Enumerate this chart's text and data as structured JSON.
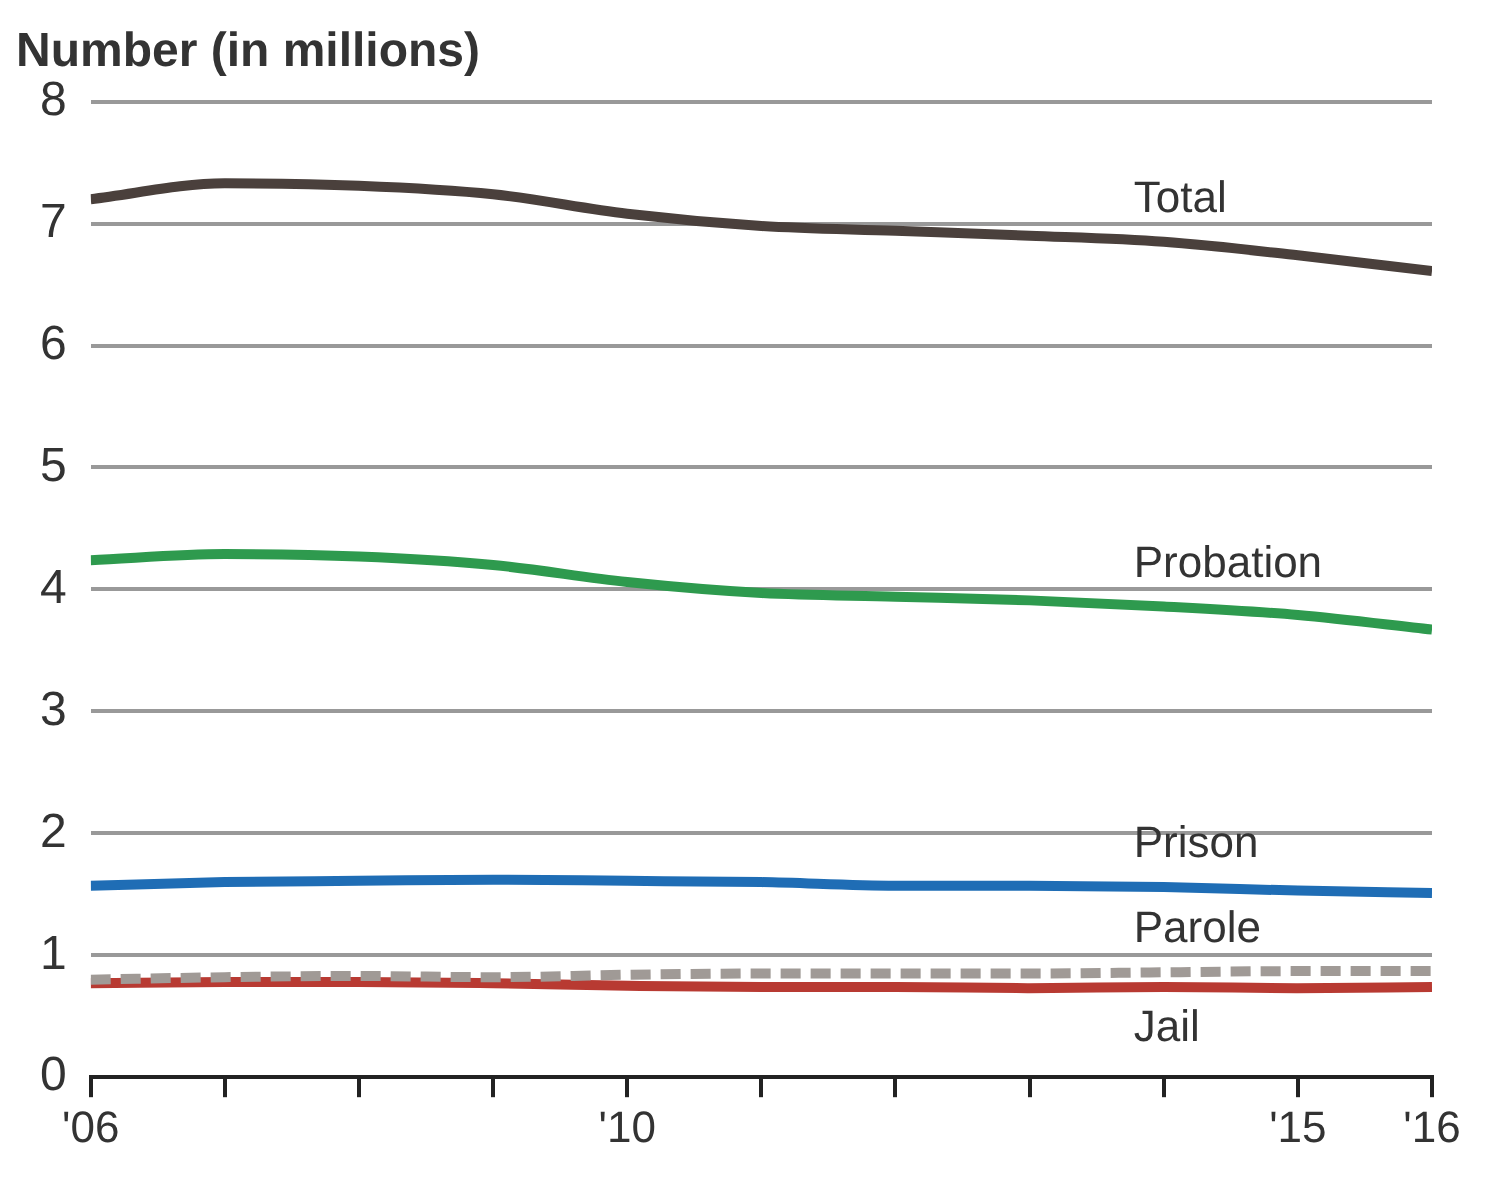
{
  "chart_data": {
    "type": "line",
    "ylabel": "Number (in millions)",
    "x": [
      2006,
      2007,
      2008,
      2009,
      2010,
      2011,
      2012,
      2013,
      2014,
      2015,
      2016
    ],
    "xlim": [
      2006,
      2016
    ],
    "xticks": [
      {
        "value": 2006,
        "label": "'06"
      },
      {
        "value": 2007,
        "label": null
      },
      {
        "value": 2008,
        "label": null
      },
      {
        "value": 2009,
        "label": null
      },
      {
        "value": 2010,
        "label": "'10"
      },
      {
        "value": 2011,
        "label": null
      },
      {
        "value": 2012,
        "label": null
      },
      {
        "value": 2013,
        "label": null
      },
      {
        "value": 2014,
        "label": null
      },
      {
        "value": 2015,
        "label": "'15"
      },
      {
        "value": 2016,
        "label": "'16"
      }
    ],
    "ylim": [
      0,
      8
    ],
    "yticks": [
      0,
      1,
      2,
      3,
      4,
      5,
      6,
      7,
      8
    ],
    "grid": "y",
    "legend": false,
    "marker": "none",
    "series": [
      {
        "name": "Total",
        "color": "#4a403c",
        "line_style": "solid",
        "values": [
          7.2,
          7.33,
          7.31,
          7.24,
          7.08,
          6.98,
          6.94,
          6.9,
          6.85,
          6.74,
          6.61
        ]
      },
      {
        "name": "Probation",
        "color": "#2e9a4e",
        "line_style": "solid",
        "values": [
          4.24,
          4.29,
          4.27,
          4.2,
          4.06,
          3.97,
          3.94,
          3.91,
          3.86,
          3.79,
          3.67
        ]
      },
      {
        "name": "Prison",
        "color": "#1f6db5",
        "line_style": "solid",
        "values": [
          1.57,
          1.6,
          1.61,
          1.62,
          1.61,
          1.6,
          1.57,
          1.57,
          1.56,
          1.53,
          1.51
        ]
      },
      {
        "name": "Parole",
        "color": "#a09a96",
        "line_style": "dashed",
        "values": [
          0.8,
          0.82,
          0.83,
          0.82,
          0.84,
          0.85,
          0.85,
          0.85,
          0.86,
          0.87,
          0.87
        ]
      },
      {
        "name": "Jail",
        "color": "#b83a32",
        "line_style": "solid",
        "values": [
          0.77,
          0.78,
          0.78,
          0.77,
          0.75,
          0.74,
          0.74,
          0.73,
          0.74,
          0.73,
          0.74
        ]
      }
    ]
  }
}
